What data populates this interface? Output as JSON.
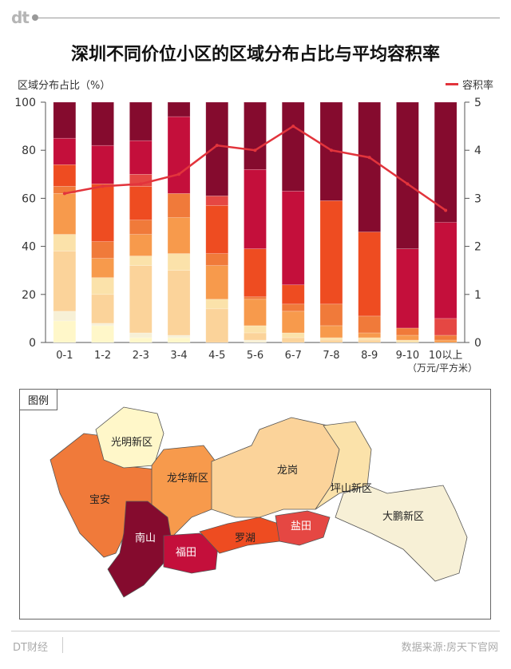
{
  "brand": "dt",
  "title": "深圳不同价位小区的区域分布占比与平均容积率",
  "y_left_label": "区域分布占比（%）",
  "legend_line": "容积率",
  "x_unit": "（万元/平方米）",
  "colors": {
    "line": "#e2343c",
    "districts": {
      "光明新区": "#fff7c9",
      "龙岗": "#fbd39a",
      "坪山新区": "#fbe2aa",
      "大鹏新区": "#f7f0d6",
      "宝安": "#f07a3a",
      "龙华新区": "#f79a4c",
      "罗湖": "#ee4c21",
      "盐田": "#e54743",
      "福田": "#c40f3b",
      "南山": "#850b2e"
    }
  },
  "chart_data": {
    "type": "bar",
    "stacked": true,
    "categories": [
      "0-1",
      "1-2",
      "2-3",
      "3-4",
      "4-5",
      "5-6",
      "6-7",
      "7-8",
      "8-9",
      "9-10",
      "10以上"
    ],
    "ylim_left": [
      0,
      100
    ],
    "ylim_right": [
      0,
      5
    ],
    "yticks_left": [
      0,
      20,
      40,
      60,
      80,
      100
    ],
    "yticks_right": [
      0,
      1,
      2,
      3,
      4,
      5
    ],
    "series": [
      {
        "name": "光明新区",
        "values": [
          9,
          7,
          2,
          2,
          0,
          0,
          0,
          0,
          0,
          0,
          0
        ]
      },
      {
        "name": "大鹏新区",
        "values": [
          4,
          1,
          2,
          1,
          0,
          1,
          0,
          0,
          0,
          0,
          0
        ]
      },
      {
        "name": "龙岗",
        "values": [
          25,
          12,
          28,
          27,
          14,
          3,
          2,
          1,
          1,
          0,
          0
        ]
      },
      {
        "name": "坪山新区",
        "values": [
          7,
          7,
          4,
          7,
          4,
          3,
          2,
          1,
          1,
          1,
          0
        ]
      },
      {
        "name": "龙华新区",
        "values": [
          17,
          8,
          9,
          15,
          14,
          11,
          9,
          5,
          2,
          2,
          1
        ]
      },
      {
        "name": "宝安",
        "values": [
          3,
          7,
          6,
          10,
          5,
          1,
          3,
          9,
          7,
          3,
          2
        ]
      },
      {
        "name": "罗湖",
        "values": [
          9,
          24,
          14,
          0,
          20,
          20,
          8,
          43,
          35,
          0,
          0
        ]
      },
      {
        "name": "盐田",
        "values": [
          0,
          0,
          5,
          0,
          4,
          0,
          0,
          0,
          0,
          0,
          7
        ]
      },
      {
        "name": "福田",
        "values": [
          11,
          16,
          14,
          32,
          0,
          33,
          39,
          0,
          0,
          33,
          40
        ]
      },
      {
        "name": "南山",
        "values": [
          15,
          18,
          16,
          6,
          39,
          28,
          37,
          41,
          54,
          61,
          50
        ]
      }
    ],
    "line_series": {
      "name": "容积率",
      "axis": "right",
      "values": [
        3.1,
        3.25,
        3.3,
        3.5,
        4.1,
        4.0,
        4.5,
        4.0,
        3.85,
        3.3,
        2.75
      ]
    }
  },
  "map": {
    "tag": "图例",
    "labels": [
      "光明新区",
      "宝安",
      "龙华新区",
      "龙岗",
      "坪山新区",
      "大鹏新区",
      "南山",
      "福田",
      "罗湖",
      "盐田"
    ]
  },
  "footer": {
    "left": "DT财经",
    "right": "数据来源:房天下官网"
  }
}
